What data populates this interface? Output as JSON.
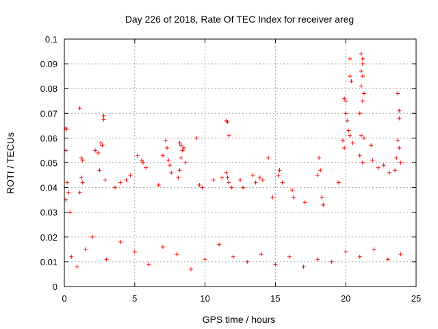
{
  "chart_data": {
    "type": "scatter",
    "title": "Day 226 of 2018, Rate Of TEC Index for receiver areg",
    "xlabel": "GPS time / hours",
    "ylabel": "ROTI / TECUs",
    "xlim": [
      0,
      25
    ],
    "ylim": [
      0,
      0.1
    ],
    "xticks": [
      0,
      5,
      10,
      15,
      20,
      25
    ],
    "xtick_labels": [
      "0",
      "5",
      "10",
      "15",
      "20",
      "25"
    ],
    "yticks": [
      0,
      0.01,
      0.02,
      0.03,
      0.04,
      0.05,
      0.06,
      0.07,
      0.08,
      0.09,
      0.1
    ],
    "ytick_labels": [
      "0",
      "0.01",
      "0.02",
      "0.03",
      "0.04",
      "0.05",
      "0.06",
      "0.07",
      "0.08",
      "0.09",
      "0.1"
    ],
    "grid": true,
    "marker": "+",
    "color": "#ff0000",
    "series": [
      {
        "name": "ROTI",
        "points": [
          [
            0.1,
            0.064
          ],
          [
            0.15,
            0.0635
          ],
          [
            0.1,
            0.055
          ],
          [
            0.2,
            0.042
          ],
          [
            0.3,
            0.038
          ],
          [
            0.1,
            0.035
          ],
          [
            0.4,
            0.03
          ],
          [
            1.1,
            0.072
          ],
          [
            1.2,
            0.052
          ],
          [
            1.3,
            0.051
          ],
          [
            1.2,
            0.044
          ],
          [
            1.3,
            0.042
          ],
          [
            1.1,
            0.038
          ],
          [
            2.2,
            0.055
          ],
          [
            2.4,
            0.054
          ],
          [
            2.6,
            0.058
          ],
          [
            2.7,
            0.057
          ],
          [
            2.8,
            0.069
          ],
          [
            2.8,
            0.0675
          ],
          [
            2.5,
            0.047
          ],
          [
            2.9,
            0.043
          ],
          [
            3.6,
            0.04
          ],
          [
            4.0,
            0.042
          ],
          [
            4.4,
            0.043
          ],
          [
            4.7,
            0.045
          ],
          [
            5.2,
            0.053
          ],
          [
            5.5,
            0.051
          ],
          [
            5.6,
            0.05
          ],
          [
            5.8,
            0.048
          ],
          [
            6.7,
            0.041
          ],
          [
            7.0,
            0.053
          ],
          [
            7.2,
            0.059
          ],
          [
            7.3,
            0.056
          ],
          [
            7.4,
            0.051
          ],
          [
            7.5,
            0.049
          ],
          [
            7.6,
            0.046
          ],
          [
            8.2,
            0.058
          ],
          [
            8.3,
            0.057
          ],
          [
            8.4,
            0.055
          ],
          [
            8.5,
            0.056
          ],
          [
            8.3,
            0.052
          ],
          [
            8.6,
            0.05
          ],
          [
            8.2,
            0.047
          ],
          [
            8.1,
            0.044
          ],
          [
            9.4,
            0.06
          ],
          [
            9.6,
            0.041
          ],
          [
            9.8,
            0.04
          ],
          [
            10.6,
            0.043
          ],
          [
            11.2,
            0.044
          ],
          [
            11.5,
            0.067
          ],
          [
            11.6,
            0.0665
          ],
          [
            11.7,
            0.061
          ],
          [
            11.5,
            0.046
          ],
          [
            11.6,
            0.044
          ],
          [
            11.7,
            0.042
          ],
          [
            11.9,
            0.04
          ],
          [
            12.5,
            0.043
          ],
          [
            12.7,
            0.04
          ],
          [
            13.4,
            0.045
          ],
          [
            13.6,
            0.042
          ],
          [
            13.9,
            0.044
          ],
          [
            14.1,
            0.043
          ],
          [
            14.5,
            0.052
          ],
          [
            14.8,
            0.036
          ],
          [
            15.2,
            0.045
          ],
          [
            15.3,
            0.047
          ],
          [
            15.5,
            0.042
          ],
          [
            16.2,
            0.039
          ],
          [
            16.3,
            0.036
          ],
          [
            17.1,
            0.034
          ],
          [
            18.1,
            0.052
          ],
          [
            18.2,
            0.047
          ],
          [
            18.0,
            0.045
          ],
          [
            18.3,
            0.036
          ],
          [
            18.4,
            0.033
          ],
          [
            19.5,
            0.042
          ],
          [
            19.9,
            0.076
          ],
          [
            20.0,
            0.075
          ],
          [
            20.0,
            0.07
          ],
          [
            20.1,
            0.067
          ],
          [
            20.2,
            0.063
          ],
          [
            19.8,
            0.059
          ],
          [
            19.9,
            0.056
          ],
          [
            20.3,
            0.092
          ],
          [
            20.3,
            0.085
          ],
          [
            20.4,
            0.083
          ],
          [
            20.3,
            0.061
          ],
          [
            20.5,
            0.058
          ],
          [
            21.1,
            0.094
          ],
          [
            21.2,
            0.092
          ],
          [
            21.2,
            0.09
          ],
          [
            21.1,
            0.087
          ],
          [
            21.2,
            0.085
          ],
          [
            21.1,
            0.081
          ],
          [
            21.3,
            0.078
          ],
          [
            21.2,
            0.075
          ],
          [
            21.0,
            0.07
          ],
          [
            21.1,
            0.061
          ],
          [
            21.3,
            0.06
          ],
          [
            21.0,
            0.053
          ],
          [
            21.2,
            0.05
          ],
          [
            21.8,
            0.057
          ],
          [
            21.9,
            0.051
          ],
          [
            22.3,
            0.048
          ],
          [
            22.7,
            0.049
          ],
          [
            23.1,
            0.046
          ],
          [
            23.7,
            0.078
          ],
          [
            23.8,
            0.071
          ],
          [
            23.8,
            0.068
          ],
          [
            23.7,
            0.059
          ],
          [
            23.8,
            0.056
          ],
          [
            23.6,
            0.052
          ],
          [
            23.9,
            0.05
          ],
          [
            23.5,
            0.047
          ],
          [
            0.5,
            0.012
          ],
          [
            0.9,
            0.008
          ],
          [
            1.5,
            0.015
          ],
          [
            2.0,
            0.02
          ],
          [
            3.0,
            0.011
          ],
          [
            4.0,
            0.018
          ],
          [
            5.0,
            0.014
          ],
          [
            6.0,
            0.009
          ],
          [
            7.0,
            0.016
          ],
          [
            8.0,
            0.013
          ],
          [
            9.0,
            0.007
          ],
          [
            10.0,
            0.011
          ],
          [
            11.0,
            0.017
          ],
          [
            12.0,
            0.012
          ],
          [
            13.0,
            0.01
          ],
          [
            14.0,
            0.013
          ],
          [
            15.0,
            0.009
          ],
          [
            16.0,
            0.012
          ],
          [
            17.0,
            0.008
          ],
          [
            18.0,
            0.011
          ],
          [
            19.0,
            0.01
          ],
          [
            20.0,
            0.014
          ],
          [
            21.0,
            0.012
          ],
          [
            22.0,
            0.015
          ],
          [
            23.0,
            0.011
          ],
          [
            23.9,
            0.013
          ]
        ]
      }
    ]
  }
}
